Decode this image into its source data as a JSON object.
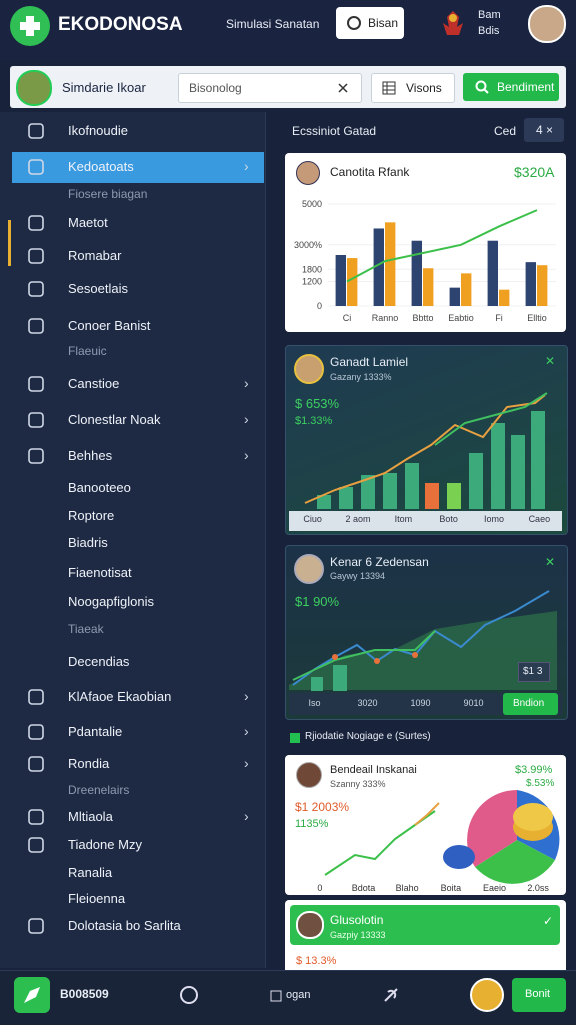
{
  "header": {
    "brand": "EKODONOSA",
    "subtitle": "Simulasi Sanatan",
    "button": "Bisan",
    "user": [
      "Bam",
      "Bdis"
    ]
  },
  "toolbar": {
    "profile": "Simdarie Ikoar",
    "search": "Bisonolog",
    "view_button": "Visons",
    "action_button": "Bendiment"
  },
  "sidebar": [
    {
      "label": "Ikofnoudie",
      "icon": true
    },
    {
      "label": "Kedoatoats",
      "icon": true,
      "chevron": true,
      "active": true
    },
    {
      "label": "Fiosere biagan",
      "dim": true
    },
    {
      "label": "Maetot",
      "icon": true
    },
    {
      "label": "Romabar",
      "icon": true
    },
    {
      "label": "Sesoetlais",
      "icon": true
    },
    {
      "label": "Conoer Banist",
      "icon": true
    },
    {
      "label": "Flaeuic",
      "dim": true
    },
    {
      "label": "Canstioe",
      "icon": true,
      "chevron": true
    },
    {
      "label": "Clonestlar Noak",
      "icon": true,
      "chevron": true
    },
    {
      "label": "Behhes",
      "icon": true,
      "chevron": true
    },
    {
      "label": "Banooteeo"
    },
    {
      "label": "Roptore"
    },
    {
      "label": "Biadris"
    },
    {
      "label": "Fiaenotisat"
    },
    {
      "label": "Noogapfiglonis"
    },
    {
      "label": "Tiaeak",
      "dim": true
    },
    {
      "label": "Decendias"
    },
    {
      "label": "KlAfaoe Ekaobian",
      "icon": true,
      "chevron": true
    },
    {
      "label": "Pdantalie",
      "icon": true,
      "chevron": true
    },
    {
      "label": "Rondia",
      "icon": true,
      "chevron": true
    },
    {
      "label": "Dreenelairs",
      "dim": true
    },
    {
      "label": "Mltiaola",
      "icon": true,
      "chevron": true
    },
    {
      "label": "Tiadone Mzy",
      "icon": true
    },
    {
      "label": "Ranalia"
    },
    {
      "label": "Fleioenna"
    },
    {
      "label": "Dolotasia bo Sarlita",
      "icon": true
    }
  ],
  "main": {
    "title": "Ecssiniot Gatad",
    "filter": "Ced",
    "badge": "4 ×"
  },
  "cards": [
    {
      "title": "Canotita Rfank",
      "value": "$320A",
      "chart": {
        "type": "bar",
        "categories": [
          "Ci",
          "Ranno",
          "Bbtto",
          "Eabtio",
          "Fi",
          "Elltio"
        ],
        "ylim": [
          0,
          5000
        ],
        "yticks": [
          0,
          1200,
          1800,
          {
            "value": 3000,
            "label": "3000%"
          },
          5000
        ],
        "series": [
          {
            "color": "#2e4470",
            "values": [
              2500,
              3800,
              3200,
              900,
              3200,
              2150
            ]
          },
          {
            "color": "#f0a020",
            "values": [
              2350,
              4100,
              1850,
              1600,
              800,
              2000
            ]
          }
        ],
        "line": {
          "color": "#3cc04a",
          "values": [
            1200,
            2200,
            2600,
            3000,
            3900,
            4700
          ]
        }
      }
    },
    {
      "title": "Ganadt Lamiel",
      "subtitle": "Gazany 1333%",
      "value": "$ 653%",
      "value2": "$1.33%",
      "x_labels": [
        "Ciuo",
        "2 aom",
        "Itom",
        "Boto",
        "Iomo",
        "Caeo"
      ]
    },
    {
      "title": "Kenar 6 Zedensan",
      "subtitle": "Gaywy 13394",
      "value": "$1 90%",
      "badge": "$1 3",
      "x_labels": [
        "Iso",
        "3020",
        "1090",
        "9010"
      ],
      "button": "Bndion"
    },
    {
      "title": "Bendeail Inskanai",
      "subtitle": "Szanny 333%",
      "value": "$3.99%",
      "value2": "$.53%",
      "left_value": "$1 2003%",
      "left_value2": "1135%",
      "x_labels": [
        "0",
        "Bdota",
        "Blaho",
        "Boita",
        "Eaeio",
        "2.0ss"
      ]
    },
    {
      "title": "Glusolotin",
      "subtitle": "Gazpiy 13333",
      "value": "$ 13.3%"
    }
  ],
  "section_label": "Rjiodatie Nogiage e (Surtes)",
  "footer": {
    "brand": "B008509",
    "center": "ogan",
    "button": "Bonit"
  }
}
